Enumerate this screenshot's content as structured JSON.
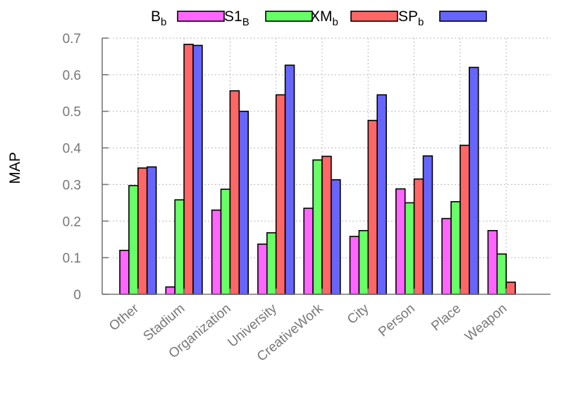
{
  "chart_data": {
    "type": "bar",
    "title": "",
    "xlabel": "",
    "ylabel": "MAP",
    "ylim": [
      0,
      0.7
    ],
    "yticks": [
      "0",
      "0.1",
      "0.2",
      "0.3",
      "0.4",
      "0.5",
      "0.6",
      "0.7"
    ],
    "grid": true,
    "legend_position": "top",
    "categories": [
      "Other",
      "Stadium",
      "Organization",
      "University",
      "CreativeWork",
      "City",
      "Person",
      "Place",
      "Weapon"
    ],
    "series": [
      {
        "name": "B",
        "sub": "b",
        "color": "#ff66ff",
        "values": [
          0.12,
          0.02,
          0.23,
          0.137,
          0.235,
          0.158,
          0.288,
          0.207,
          0.174
        ]
      },
      {
        "name": "S1",
        "sub": "B",
        "color": "#66ff66",
        "values": [
          0.297,
          0.258,
          0.287,
          0.168,
          0.367,
          0.174,
          0.25,
          0.253,
          0.11
        ]
      },
      {
        "name": "XM",
        "sub": "b",
        "color": "#ff6666",
        "values": [
          0.345,
          0.683,
          0.556,
          0.545,
          0.377,
          0.475,
          0.315,
          0.407,
          0.033
        ]
      },
      {
        "name": "SP",
        "sub": "b",
        "color": "#6666ff",
        "values": [
          0.348,
          0.68,
          0.5,
          0.626,
          0.313,
          0.545,
          0.378,
          0.62,
          null
        ]
      }
    ]
  }
}
